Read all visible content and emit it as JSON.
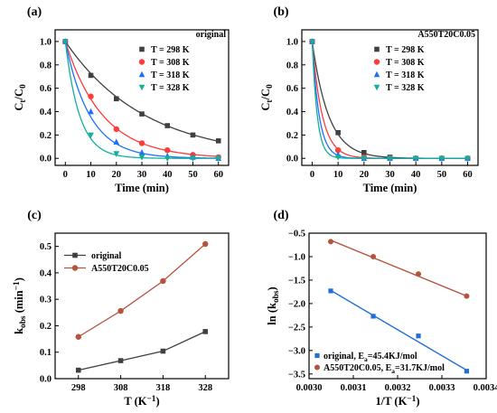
{
  "chart_data": [
    {
      "type": "line",
      "panel_label": "(a)",
      "title": "original",
      "xlabel": "Time (min)",
      "ylabel": "C_t/C_0",
      "xlim": [
        -4,
        64
      ],
      "ylim": [
        -0.06,
        1.1
      ],
      "xticks": [
        0,
        10,
        20,
        30,
        40,
        50,
        60
      ],
      "yticks": [
        0.0,
        0.2,
        0.4,
        0.6,
        0.8,
        1.0
      ],
      "legend_position": "top-right",
      "x": [
        0,
        10,
        20,
        30,
        40,
        50,
        60
      ],
      "series": [
        {
          "name": "T = 298 K",
          "color": "#404040",
          "marker": "square",
          "values": [
            1.0,
            0.71,
            0.51,
            0.38,
            0.28,
            0.2,
            0.15
          ],
          "fit_k": 0.032
        },
        {
          "name": "T = 308 K",
          "color": "#ff3b3b",
          "marker": "circle",
          "values": [
            1.0,
            0.53,
            0.25,
            0.13,
            0.07,
            0.03,
            0.01
          ],
          "fit_k": 0.068
        },
        {
          "name": "T = 318 K",
          "color": "#1f6fff",
          "marker": "triangle-up",
          "values": [
            1.0,
            0.4,
            0.14,
            0.05,
            0.02,
            0.01,
            0.0
          ],
          "fit_k": 0.104
        },
        {
          "name": "T = 328 K",
          "color": "#12b09a",
          "marker": "triangle-down",
          "values": [
            1.0,
            0.2,
            0.04,
            0.01,
            0.0,
            0.0,
            0.0
          ],
          "fit_k": 0.178
        }
      ]
    },
    {
      "type": "line",
      "panel_label": "(b)",
      "title": "A550T20C0.05",
      "xlabel": "Time (min)",
      "ylabel": "C_t/C_0",
      "xlim": [
        -4,
        64
      ],
      "ylim": [
        -0.06,
        1.1
      ],
      "xticks": [
        0,
        10,
        20,
        30,
        40,
        50,
        60
      ],
      "yticks": [
        0.0,
        0.2,
        0.4,
        0.6,
        0.8,
        1.0
      ],
      "legend_position": "top-right",
      "x": [
        0,
        10,
        20,
        30,
        40,
        50,
        60
      ],
      "series": [
        {
          "name": "T = 298 K",
          "color": "#404040",
          "marker": "square",
          "values": [
            1.0,
            0.22,
            0.05,
            0.01,
            0.0,
            0.0,
            0.0
          ],
          "fit_k": 0.158
        },
        {
          "name": "T = 308 K",
          "color": "#ff3b3b",
          "marker": "circle",
          "values": [
            1.0,
            0.07,
            0.01,
            0.0,
            0.0,
            0.0,
            0.0
          ],
          "fit_k": 0.256
        },
        {
          "name": "T = 318 K",
          "color": "#1f6fff",
          "marker": "triangle-up",
          "values": [
            1.0,
            0.03,
            0.0,
            0.0,
            0.0,
            0.0,
            0.0
          ],
          "fit_k": 0.369
        },
        {
          "name": "T = 328 K",
          "color": "#12b09a",
          "marker": "triangle-down",
          "values": [
            1.0,
            0.01,
            0.0,
            0.0,
            0.0,
            0.0,
            0.0
          ],
          "fit_k": 0.509
        }
      ]
    },
    {
      "type": "line",
      "panel_label": "(c)",
      "title": "",
      "xlabel": "T (K^-1)",
      "ylabel": "k_obs (min^-1)",
      "categories": [
        "298",
        "308",
        "318",
        "328"
      ],
      "ylim": [
        0.0,
        0.55
      ],
      "yticks": [
        0.0,
        0.1,
        0.2,
        0.3,
        0.4,
        0.5
      ],
      "legend_position": "top-left",
      "series": [
        {
          "name": "original",
          "color": "#404040",
          "marker": "square",
          "values": [
            0.032,
            0.068,
            0.104,
            0.178
          ]
        },
        {
          "name": "A550T20C0.05",
          "color": "#b5533c",
          "marker": "circle",
          "values": [
            0.158,
            0.256,
            0.369,
            0.509
          ]
        }
      ]
    },
    {
      "type": "scatter",
      "panel_label": "(d)",
      "title": "",
      "xlabel": "1/T (K^-1)",
      "ylabel": "ln (k_obs)",
      "xlim": [
        0.003,
        0.0034
      ],
      "ylim": [
        -3.6,
        -0.5
      ],
      "xticks": [
        "0.0030",
        "0.0031",
        "0.0032",
        "0.0033",
        "0.0034"
      ],
      "yticks": [
        "-0.5",
        "-1.0",
        "-1.5",
        "-2.0",
        "-2.5",
        "-3.0",
        "-3.5"
      ],
      "legend_position": "bottom-left",
      "series": [
        {
          "name": "original, E_a=45.4KJ/mol",
          "color": "#1f6fd6",
          "marker": "square",
          "x": [
            0.003049,
            0.003145,
            0.003247,
            0.003356
          ],
          "values": [
            -1.73,
            -2.27,
            -2.69,
            -3.44
          ],
          "fit": [
            [
              0.003049,
              -1.72
            ],
            [
              0.003356,
              -3.42
            ]
          ]
        },
        {
          "name": "A550T20C0.05, E_a=31.7KJ/mol",
          "color": "#b5533c",
          "marker": "circle",
          "x": [
            0.003049,
            0.003145,
            0.003247,
            0.003356
          ],
          "values": [
            -0.68,
            -1.0,
            -1.37,
            -1.84
          ],
          "fit": [
            [
              0.003049,
              -0.65
            ],
            [
              0.003356,
              -1.84
            ]
          ]
        }
      ]
    }
  ]
}
